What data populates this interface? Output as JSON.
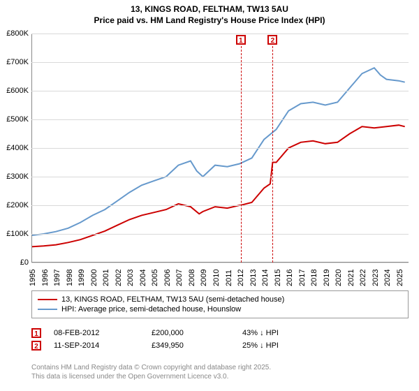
{
  "title": {
    "line1": "13, KINGS ROAD, FELTHAM, TW13 5AU",
    "line2": "Price paid vs. HM Land Registry's House Price Index (HPI)"
  },
  "chart": {
    "type": "line",
    "x_min": 1995,
    "x_max": 2025.8,
    "x_ticks": [
      1995,
      1996,
      1997,
      1998,
      1999,
      2000,
      2001,
      2002,
      2003,
      2004,
      2005,
      2006,
      2007,
      2008,
      2009,
      2010,
      2011,
      2012,
      2013,
      2014,
      2015,
      2016,
      2017,
      2018,
      2019,
      2020,
      2021,
      2022,
      2023,
      2024,
      2025
    ],
    "y_min": 0,
    "y_max": 800,
    "y_ticks": [
      0,
      100,
      200,
      300,
      400,
      500,
      600,
      700,
      800
    ],
    "y_tick_labels": [
      "£0",
      "£100K",
      "£200K",
      "£300K",
      "£400K",
      "£500K",
      "£600K",
      "£700K",
      "£800K"
    ],
    "grid_color": "#d9d9d9",
    "background_color": "#ffffff",
    "sale_band": {
      "x_from": 2012.1,
      "x_to": 2014.7,
      "color": "#e8edf7"
    },
    "series": [
      {
        "label": "13, KINGS ROAD, FELTHAM, TW13 5AU (semi-detached house)",
        "color": "#cc0000",
        "width": 2,
        "points": [
          [
            1995,
            55
          ],
          [
            1996,
            58
          ],
          [
            1997,
            62
          ],
          [
            1998,
            70
          ],
          [
            1999,
            80
          ],
          [
            2000,
            95
          ],
          [
            2001,
            110
          ],
          [
            2002,
            130
          ],
          [
            2003,
            150
          ],
          [
            2004,
            165
          ],
          [
            2005,
            175
          ],
          [
            2006,
            185
          ],
          [
            2007,
            205
          ],
          [
            2008,
            195
          ],
          [
            2008.7,
            170
          ],
          [
            2009,
            178
          ],
          [
            2010,
            195
          ],
          [
            2011,
            190
          ],
          [
            2012,
            200
          ],
          [
            2012.1,
            200
          ],
          [
            2013,
            210
          ],
          [
            2014,
            260
          ],
          [
            2014.5,
            275
          ],
          [
            2014.7,
            349.95
          ],
          [
            2015,
            350
          ],
          [
            2016,
            400
          ],
          [
            2017,
            420
          ],
          [
            2018,
            425
          ],
          [
            2019,
            415
          ],
          [
            2020,
            420
          ],
          [
            2021,
            450
          ],
          [
            2022,
            475
          ],
          [
            2023,
            470
          ],
          [
            2024,
            475
          ],
          [
            2025,
            480
          ],
          [
            2025.5,
            475
          ]
        ]
      },
      {
        "label": "HPI: Average price, semi-detached house, Hounslow",
        "color": "#6699cc",
        "width": 2,
        "points": [
          [
            1995,
            95
          ],
          [
            1996,
            100
          ],
          [
            1997,
            108
          ],
          [
            1998,
            120
          ],
          [
            1999,
            140
          ],
          [
            2000,
            165
          ],
          [
            2001,
            185
          ],
          [
            2002,
            215
          ],
          [
            2003,
            245
          ],
          [
            2004,
            270
          ],
          [
            2005,
            285
          ],
          [
            2006,
            300
          ],
          [
            2007,
            340
          ],
          [
            2008,
            355
          ],
          [
            2008.5,
            320
          ],
          [
            2009,
            300
          ],
          [
            2010,
            340
          ],
          [
            2011,
            335
          ],
          [
            2012,
            345
          ],
          [
            2013,
            365
          ],
          [
            2014,
            430
          ],
          [
            2015,
            465
          ],
          [
            2016,
            530
          ],
          [
            2017,
            555
          ],
          [
            2018,
            560
          ],
          [
            2019,
            550
          ],
          [
            2020,
            560
          ],
          [
            2021,
            610
          ],
          [
            2022,
            660
          ],
          [
            2023,
            680
          ],
          [
            2023.5,
            655
          ],
          [
            2024,
            640
          ],
          [
            2025,
            635
          ],
          [
            2025.5,
            630
          ]
        ]
      }
    ],
    "markers": [
      {
        "n": "1",
        "x": 2012.1,
        "color": "#cc0000"
      },
      {
        "n": "2",
        "x": 2014.7,
        "color": "#cc0000"
      }
    ],
    "title_fontsize": 12,
    "tick_fontsize": 11
  },
  "legend": {
    "rows": [
      {
        "color": "#cc0000",
        "label": "13, KINGS ROAD, FELTHAM, TW13 5AU (semi-detached house)"
      },
      {
        "color": "#6699cc",
        "label": "HPI: Average price, semi-detached house, Hounslow"
      }
    ]
  },
  "sales": [
    {
      "n": "1",
      "color": "#cc0000",
      "date": "08-FEB-2012",
      "price": "£200,000",
      "hpi": "43% ↓ HPI"
    },
    {
      "n": "2",
      "color": "#cc0000",
      "date": "11-SEP-2014",
      "price": "£349,950",
      "hpi": "25% ↓ HPI"
    }
  ],
  "footer": {
    "line1": "Contains HM Land Registry data © Crown copyright and database right 2025.",
    "line2": "This data is licensed under the Open Government Licence v3.0."
  }
}
